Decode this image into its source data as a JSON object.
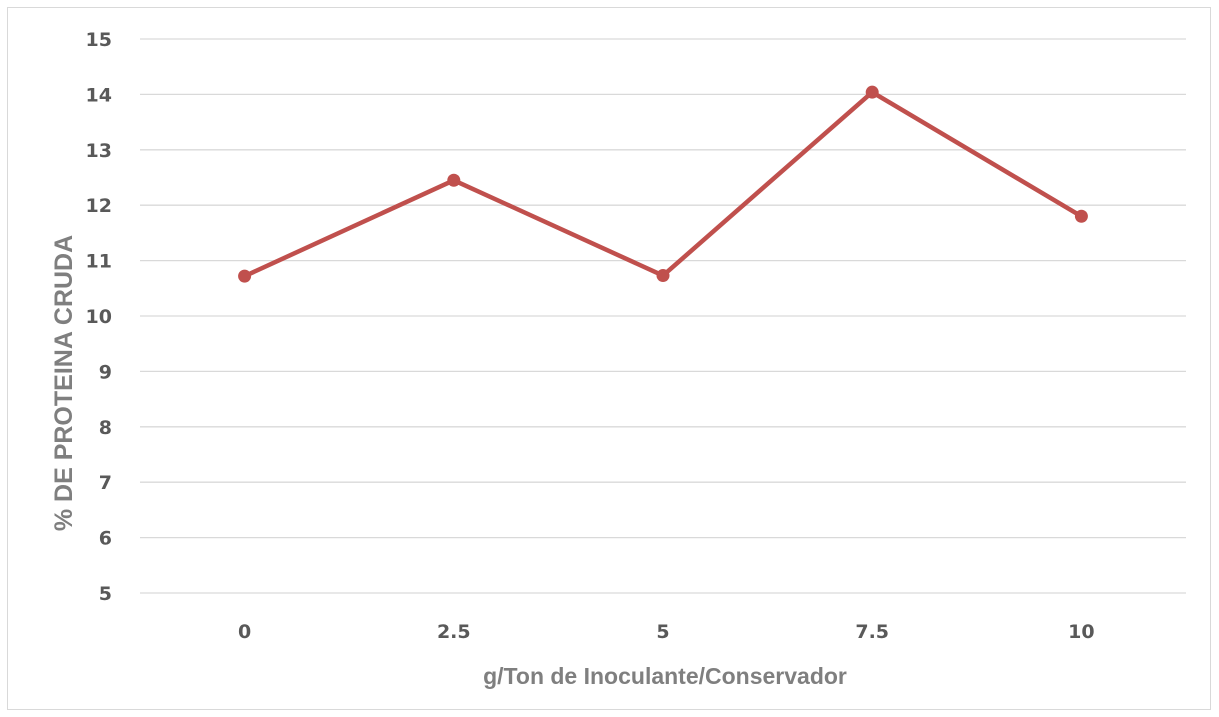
{
  "chart_data": {
    "type": "line",
    "categories": [
      "0",
      "2.5",
      "5",
      "7.5",
      "10"
    ],
    "series": [
      {
        "values": [
          10.72,
          12.45,
          10.73,
          14.04,
          11.8
        ]
      }
    ],
    "xlabel": "g/Ton de Inoculante/Conservador",
    "ylabel": "% DE PROTEINA CRUDA",
    "ylim": [
      5,
      15
    ],
    "yticks": [
      5,
      6,
      7,
      8,
      9,
      10,
      11,
      12,
      13,
      14,
      15
    ],
    "grid": "horizontal",
    "line_color": "#c0504d"
  }
}
